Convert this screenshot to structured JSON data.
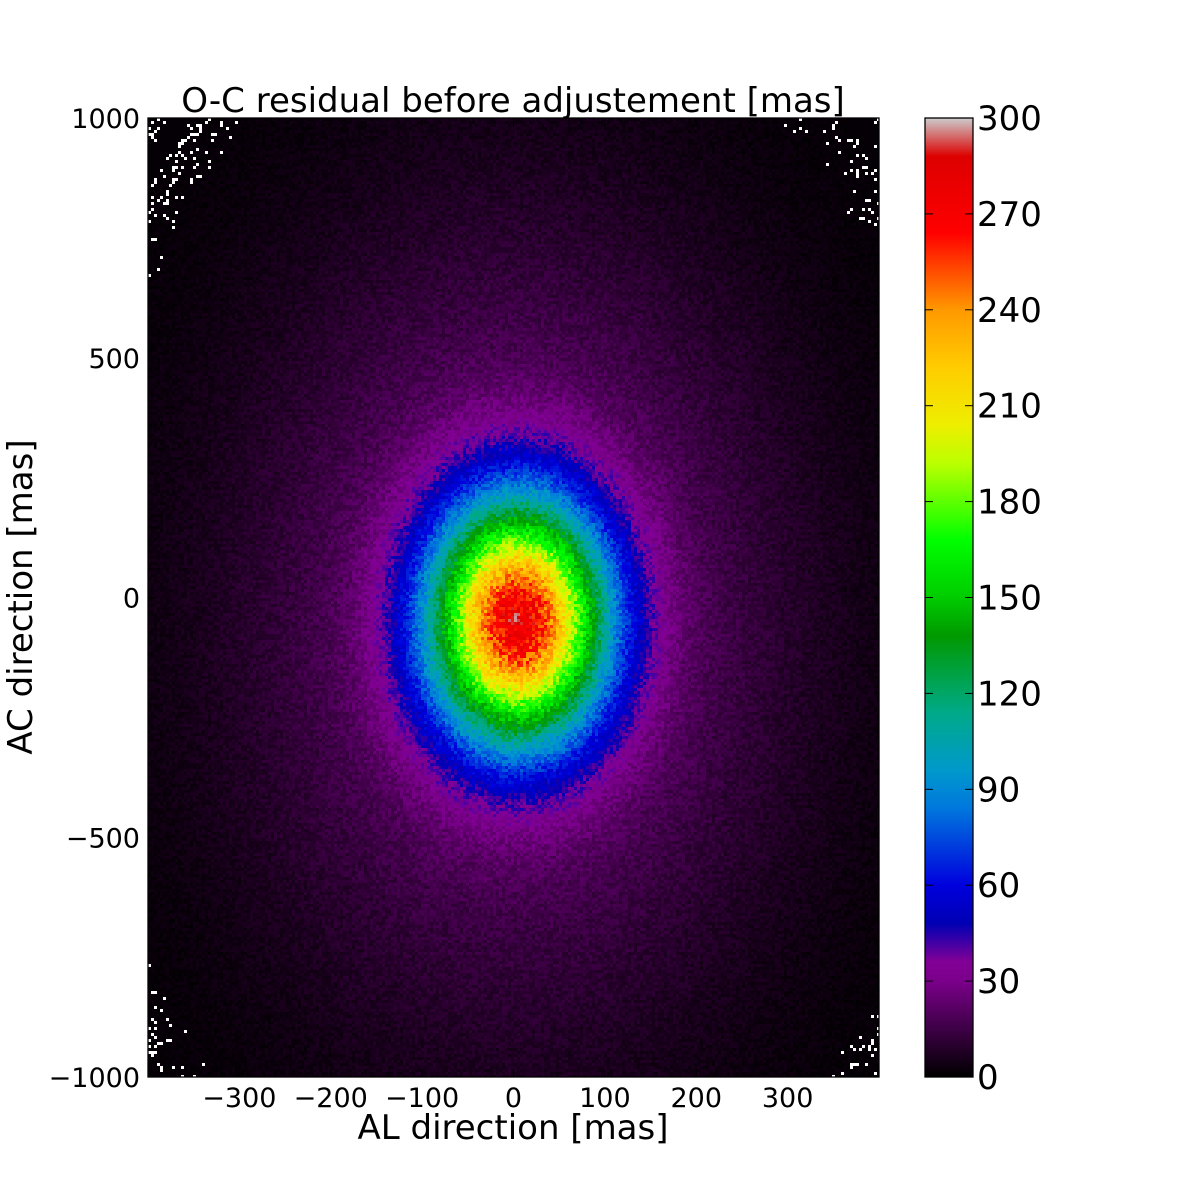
{
  "chart_data": {
    "type": "heatmap",
    "title": "O-C residual before adjustement [mas]",
    "xlabel": "AL direction [mas]",
    "ylabel": "AC direction [mas]",
    "xlim": [
      -400,
      400
    ],
    "ylim": [
      -1000,
      1000
    ],
    "x_ticks": [
      -300,
      -200,
      -100,
      0,
      100,
      200,
      300
    ],
    "x_tick_labels": [
      "−300",
      "−200",
      "−100",
      "0",
      "100",
      "200",
      "300"
    ],
    "y_ticks": [
      1000,
      500,
      0,
      -500,
      -1000
    ],
    "y_tick_labels": [
      "1000",
      "500",
      "0",
      "−500",
      "−1000"
    ],
    "grid": false,
    "colormap": "nipy_spectral",
    "colorbar": {
      "range": [
        0,
        300
      ],
      "ticks": [
        300,
        270,
        240,
        210,
        180,
        150,
        120,
        90,
        60,
        30,
        0
      ],
      "tick_labels": [
        "300",
        "270",
        "240",
        "210",
        "180",
        "150",
        "120",
        "90",
        "60",
        "30",
        "0"
      ]
    },
    "distribution": {
      "peak_count": 280,
      "peak_center": [
        5,
        -50
      ],
      "core_sigma": [
        65,
        170
      ],
      "halo_sigma": [
        200,
        560
      ]
    },
    "colors": {
      "stops": [
        "#000000",
        "#7a008a",
        "#820096",
        "#0000b4",
        "#0000dd",
        "#0077dd",
        "#0099cc",
        "#00aa88",
        "#009900",
        "#00cc00",
        "#00ff00",
        "#bbff00",
        "#eeee00",
        "#ffcc00",
        "#ff9900",
        "#ff0000",
        "#dd0000",
        "#cccccc"
      ],
      "stop_values": [
        0,
        30,
        36,
        48,
        60,
        84,
        96,
        114,
        138,
        150,
        168,
        192,
        204,
        222,
        240,
        264,
        288,
        300
      ]
    }
  }
}
